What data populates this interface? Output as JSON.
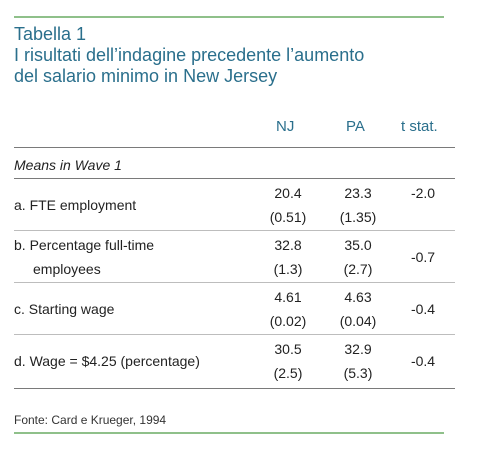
{
  "title": {
    "line1": "Tabella 1",
    "line2": "I risultati dell’indagine precedente l’aumento",
    "line3": "del salario minimo in New Jersey"
  },
  "columns": {
    "nj": "NJ",
    "pa": "PA",
    "tstat": "t stat."
  },
  "section": "Means in Wave 1",
  "rows": [
    {
      "label": [
        "a. FTE employment"
      ],
      "nj": [
        "20.4",
        "(0.51)"
      ],
      "pa": [
        "23.3",
        "(1.35)"
      ],
      "tstat": "-2.0"
    },
    {
      "label": [
        "b. Percentage full-time",
        "employees"
      ],
      "nj": [
        "32.8",
        "(1.3)"
      ],
      "pa": [
        "35.0",
        "(2.7)"
      ],
      "tstat": "-0.7"
    },
    {
      "label": [
        "c. Starting wage"
      ],
      "nj": [
        "4.61",
        "(0.02)"
      ],
      "pa": [
        "4.63",
        "(0.04)"
      ],
      "tstat": "-0.4"
    },
    {
      "label": [
        "d. Wage = $4.25 (percentage)"
      ],
      "nj": [
        "30.5",
        "(2.5)"
      ],
      "pa": [
        "32.9",
        "(5.3)"
      ],
      "tstat": "-0.4"
    }
  ],
  "source": "Fonte: Card e Krueger, 1994",
  "colors": {
    "accent": "#2a6f8c",
    "rule": "#8fc08a"
  }
}
